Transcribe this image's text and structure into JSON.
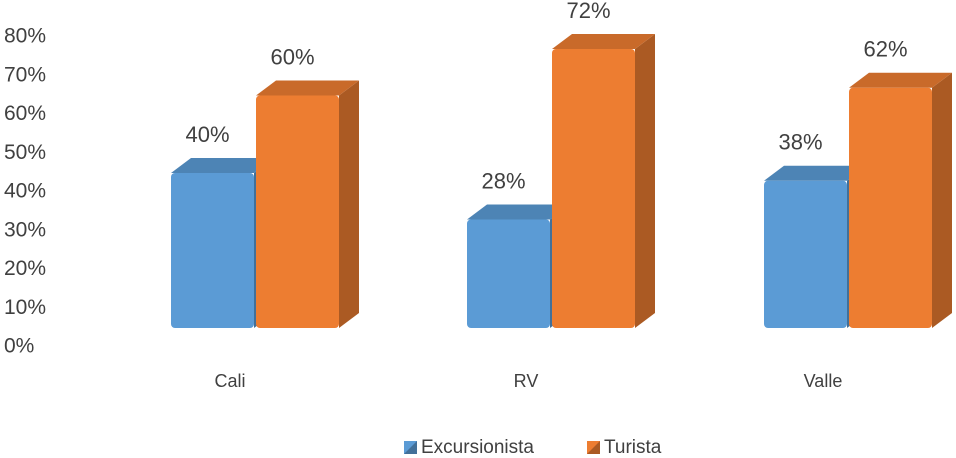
{
  "chart_data": {
    "type": "bar3d",
    "categories": [
      "Cali",
      "RV",
      "Valle"
    ],
    "series": [
      {
        "name": "Excursionista",
        "color": "#5b9bd5",
        "values": [
          40,
          28,
          38
        ],
        "value_labels": [
          "40%",
          "28%",
          "38%"
        ]
      },
      {
        "name": "Turista",
        "color": "#ed7d31",
        "values": [
          60,
          72,
          62
        ],
        "value_labels": [
          "60%",
          "72%",
          "62%"
        ]
      }
    ],
    "ylim": [
      0,
      80
    ],
    "yticks": [
      {
        "value": 0,
        "label": "0%"
      },
      {
        "value": 10,
        "label": "10%"
      },
      {
        "value": 20,
        "label": "20%"
      },
      {
        "value": 30,
        "label": "30%"
      },
      {
        "value": 40,
        "label": "40%"
      },
      {
        "value": 50,
        "label": "50%"
      },
      {
        "value": 60,
        "label": "60%"
      },
      {
        "value": 70,
        "label": "70%"
      },
      {
        "value": 80,
        "label": "80%"
      }
    ],
    "grid": false,
    "legend": "bottom"
  }
}
